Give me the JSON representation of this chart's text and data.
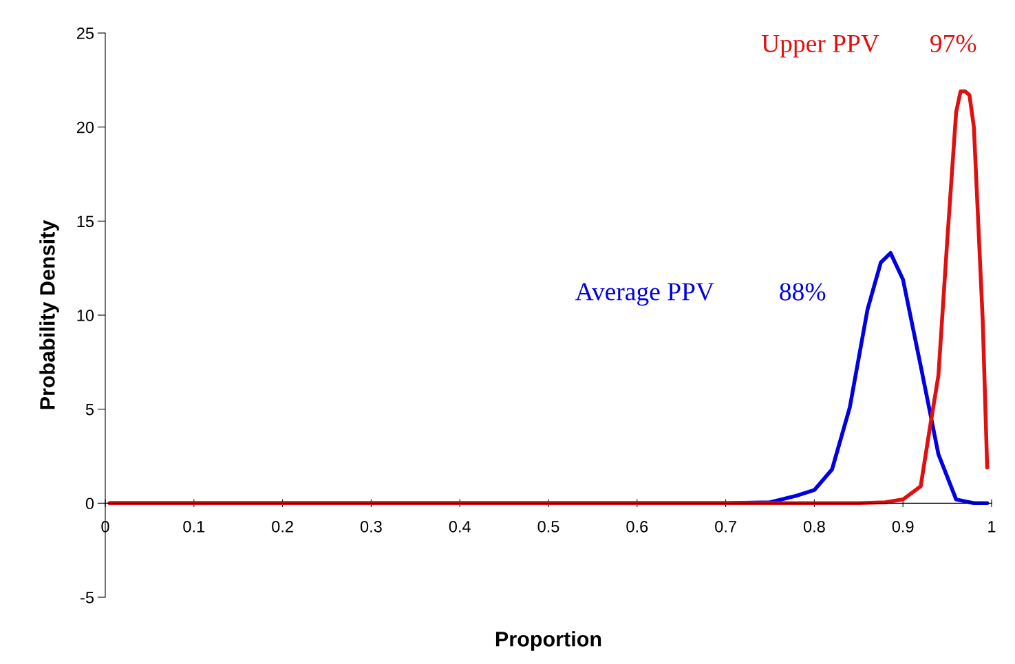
{
  "chart_data": {
    "type": "line",
    "xlabel": "Proportion",
    "ylabel": "Probability Density",
    "xlim": [
      0,
      1
    ],
    "ylim": [
      -5,
      25
    ],
    "xticks": [
      {
        "value": 0,
        "label": "0"
      },
      0.1,
      0.2,
      0.3,
      0.4,
      0.5,
      0.6,
      0.7,
      0.8,
      0.9,
      {
        "value": 1,
        "label": "1"
      }
    ],
    "yticks": [
      -5,
      0,
      5,
      10,
      15,
      20,
      25
    ],
    "grid": false,
    "legend": false,
    "marker": "none",
    "line_style": "solid",
    "annotations": [
      "88%",
      "97%"
    ],
    "series": [
      {
        "name": "Average PPV",
        "color": "#0000e0",
        "x": [
          0.005,
          0.7,
          0.75,
          0.78,
          0.8,
          0.82,
          0.84,
          0.86,
          0.875,
          0.886,
          0.9,
          0.92,
          0.94,
          0.96,
          0.98,
          0.995
        ],
        "values": [
          0,
          0,
          0.05,
          0.4,
          0.7,
          1.8,
          5.1,
          10.3,
          12.8,
          13.3,
          11.9,
          7.3,
          2.6,
          0.2,
          0,
          0
        ]
      },
      {
        "name": "Upper PPV",
        "color": "#e01010",
        "x": [
          0.005,
          0.7,
          0.85,
          0.88,
          0.9,
          0.92,
          0.93,
          0.94,
          0.95,
          0.96,
          0.965,
          0.97,
          0.975,
          0.98,
          0.99,
          0.995
        ],
        "values": [
          0,
          0,
          0,
          0.05,
          0.2,
          0.9,
          3.9,
          6.8,
          14,
          20.8,
          21.9,
          21.9,
          21.7,
          20,
          9.7,
          1.9
        ]
      }
    ]
  }
}
